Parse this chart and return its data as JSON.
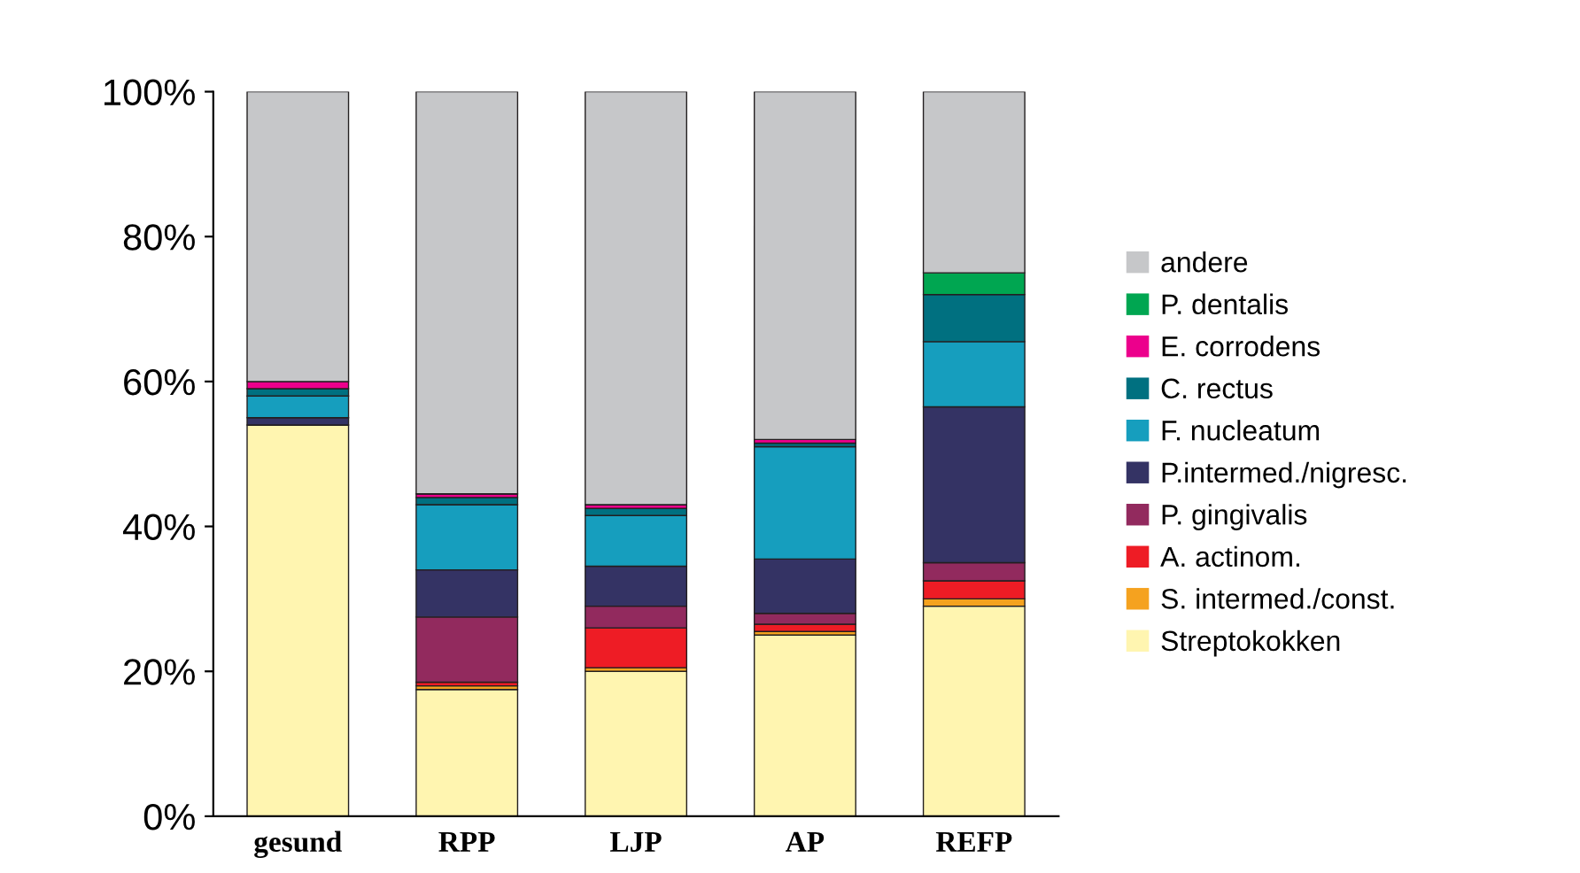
{
  "chart_data": {
    "type": "bar",
    "stacked": true,
    "categories": [
      "gesund",
      "RPP",
      "LJP",
      "AP",
      "REFP"
    ],
    "series": [
      {
        "name": "Streptokokken",
        "color": "#fff5b0",
        "values": [
          54,
          17.5,
          20,
          25,
          29
        ]
      },
      {
        "name": "S. intermed./const.",
        "color": "#f5a21f",
        "values": [
          0,
          0.5,
          0.5,
          0.5,
          1
        ]
      },
      {
        "name": "A. actinom.",
        "color": "#ee1c25",
        "values": [
          0,
          0.5,
          5.5,
          1,
          2.5
        ]
      },
      {
        "name": "P. gingivalis",
        "color": "#922a5e",
        "values": [
          0,
          9,
          3,
          1.5,
          2.5
        ]
      },
      {
        "name": "P.intermed./nigresc.",
        "color": "#343364",
        "values": [
          1,
          6.5,
          5.5,
          7.5,
          21.5
        ]
      },
      {
        "name": "F. nucleatum",
        "color": "#169ebe",
        "values": [
          3,
          9,
          7,
          15.5,
          9
        ]
      },
      {
        "name": "C. rectus",
        "color": "#007080",
        "values": [
          1,
          1,
          1,
          0.5,
          6.5
        ]
      },
      {
        "name": "E. corrodens",
        "color": "#ec008c",
        "values": [
          1,
          0.5,
          0.5,
          0.5,
          0
        ]
      },
      {
        "name": "P. dentalis",
        "color": "#00a651",
        "values": [
          0,
          0,
          0,
          0,
          3
        ]
      },
      {
        "name": "andere",
        "color": "#c6c7c9",
        "values": [
          40,
          55.5,
          57,
          48,
          25
        ]
      }
    ],
    "ylim": [
      0,
      100
    ],
    "yticks": [
      {
        "value": 0,
        "label": "0%"
      },
      {
        "value": 20,
        "label": "20%"
      },
      {
        "value": 40,
        "label": "40%"
      },
      {
        "value": 60,
        "label": "60%"
      },
      {
        "value": 80,
        "label": "80%"
      },
      {
        "value": 100,
        "label": "100%"
      }
    ],
    "grid": false,
    "legend": "right"
  }
}
